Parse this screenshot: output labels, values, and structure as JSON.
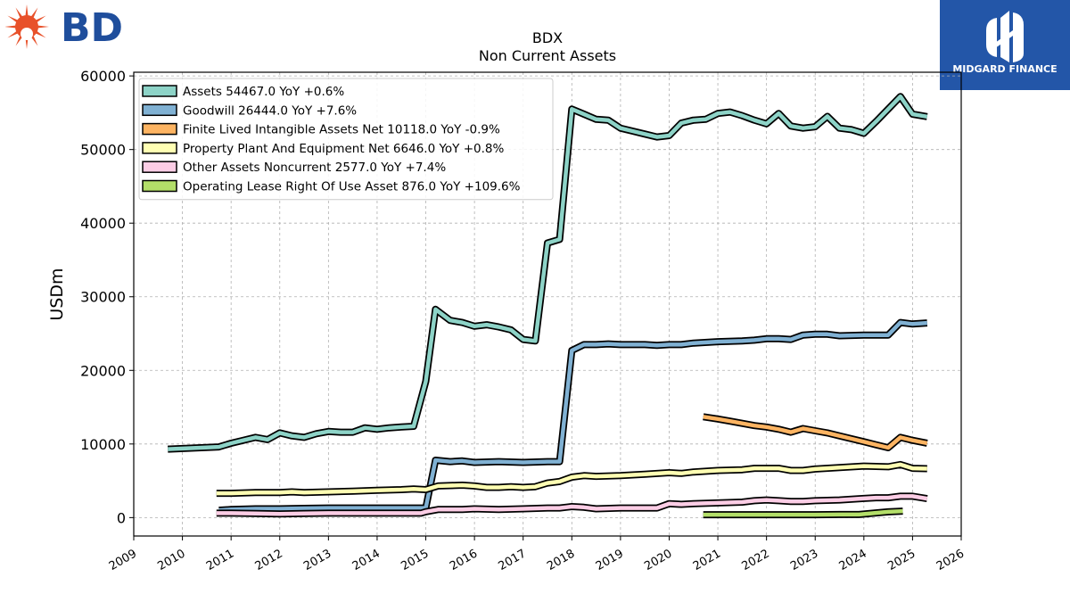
{
  "logos": {
    "left_text": "BD",
    "left_color": "#1f4e9c",
    "left_icon_color": "#e8512a",
    "right_text": "MIDGARD FINANCE",
    "right_bg": "#2356a8"
  },
  "chart_data": {
    "type": "line",
    "title": "BDX",
    "subtitle": "Non Current  Assets",
    "ylabel": "USDm",
    "xlabel": "",
    "xlim": [
      2009,
      2026
    ],
    "ylim": [
      -2500,
      60500
    ],
    "yticks": [
      0,
      10000,
      20000,
      30000,
      40000,
      50000,
      60000
    ],
    "xticks": [
      2009,
      2010,
      2011,
      2012,
      2013,
      2014,
      2015,
      2016,
      2017,
      2018,
      2019,
      2020,
      2021,
      2022,
      2023,
      2024,
      2025,
      2026
    ],
    "grid": true,
    "legend_position": "top-left",
    "series": [
      {
        "name": "Assets  54467.0 YoY +0.6%",
        "color": "#8dd3c7",
        "x": [
          2009.7,
          2010.75,
          2011.0,
          2011.25,
          2011.5,
          2011.75,
          2012.0,
          2012.25,
          2012.5,
          2012.75,
          2013.0,
          2013.25,
          2013.5,
          2013.75,
          2014.0,
          2014.25,
          2014.5,
          2014.75,
          2015.0,
          2015.2,
          2015.5,
          2015.75,
          2016.0,
          2016.25,
          2016.5,
          2016.75,
          2017.0,
          2017.25,
          2017.5,
          2017.75,
          2018.0,
          2018.25,
          2018.5,
          2018.75,
          2019.0,
          2019.25,
          2019.5,
          2019.75,
          2020.0,
          2020.25,
          2020.5,
          2020.75,
          2021.0,
          2021.25,
          2021.5,
          2021.75,
          2022.0,
          2022.25,
          2022.5,
          2022.75,
          2023.0,
          2023.25,
          2023.5,
          2023.75,
          2024.0,
          2024.25,
          2024.5,
          2024.75,
          2025.0,
          2025.3
        ],
        "values": [
          9300,
          9600,
          10100,
          10500,
          10900,
          10600,
          11500,
          11100,
          10900,
          11400,
          11700,
          11600,
          11600,
          12200,
          12000,
          12200,
          12300,
          12400,
          18500,
          28300,
          26800,
          26500,
          26000,
          26200,
          25900,
          25500,
          24200,
          24000,
          37300,
          37800,
          55500,
          54800,
          54100,
          54000,
          52900,
          52500,
          52100,
          51700,
          51900,
          53600,
          54000,
          54100,
          54900,
          55100,
          54600,
          54000,
          53500,
          54900,
          53200,
          52900,
          53100,
          54500,
          52900,
          52700,
          52200,
          53800,
          55500,
          57200,
          54800,
          54467
        ]
      },
      {
        "name": "Goodwill  26444.0 YoY +7.6%",
        "color": "#80b1d3",
        "x": [
          2010.75,
          2011.0,
          2011.5,
          2012.0,
          2012.5,
          2013.0,
          2013.5,
          2014.0,
          2014.5,
          2014.9,
          2015.0,
          2015.2,
          2015.5,
          2015.75,
          2016.0,
          2016.5,
          2017.0,
          2017.5,
          2017.75,
          2018.0,
          2018.25,
          2018.5,
          2018.75,
          2019.0,
          2019.5,
          2019.75,
          2020.0,
          2020.25,
          2020.5,
          2021.0,
          2021.5,
          2021.75,
          2022.0,
          2022.25,
          2022.5,
          2022.75,
          2023.0,
          2023.25,
          2023.5,
          2024.0,
          2024.5,
          2024.75,
          2025.0,
          2025.3
        ],
        "values": [
          1000,
          1100,
          1200,
          1200,
          1250,
          1300,
          1300,
          1300,
          1300,
          1300,
          1300,
          7800,
          7600,
          7700,
          7500,
          7600,
          7500,
          7600,
          7600,
          22700,
          23500,
          23500,
          23600,
          23500,
          23500,
          23400,
          23500,
          23500,
          23700,
          23900,
          24000,
          24100,
          24300,
          24300,
          24200,
          24800,
          24900,
          24900,
          24700,
          24800,
          24800,
          26500,
          26300,
          26444
        ]
      },
      {
        "name": "Finite Lived Intangible Assets Net  10118.0 YoY -0.9%",
        "color": "#fdb462",
        "x": [
          2020.7,
          2021.0,
          2021.25,
          2021.5,
          2021.75,
          2022.0,
          2022.25,
          2022.5,
          2022.75,
          2023.0,
          2023.25,
          2023.5,
          2023.75,
          2024.0,
          2024.25,
          2024.5,
          2024.75,
          2025.0,
          2025.3
        ],
        "values": [
          13700,
          13400,
          13100,
          12800,
          12500,
          12300,
          12000,
          11600,
          12100,
          11800,
          11500,
          11100,
          10700,
          10300,
          9900,
          9500,
          10900,
          10500,
          10118
        ]
      },
      {
        "name": "Property Plant And Equipment Net  6646.0 YoY +0.8%",
        "color": "#ffffb3",
        "x": [
          2010.7,
          2011.0,
          2011.5,
          2012.0,
          2012.25,
          2012.5,
          2013.0,
          2013.5,
          2014.0,
          2014.5,
          2014.75,
          2015.0,
          2015.25,
          2015.75,
          2016.0,
          2016.25,
          2016.5,
          2016.75,
          2017.0,
          2017.25,
          2017.5,
          2017.75,
          2018.0,
          2018.25,
          2018.5,
          2019.0,
          2019.5,
          2020.0,
          2020.25,
          2020.5,
          2021.0,
          2021.5,
          2021.75,
          2022.0,
          2022.25,
          2022.5,
          2022.75,
          2023.0,
          2023.5,
          2024.0,
          2024.5,
          2024.75,
          2025.0,
          2025.3
        ],
        "values": [
          3300,
          3300,
          3400,
          3400,
          3500,
          3400,
          3500,
          3600,
          3700,
          3800,
          3900,
          3800,
          4300,
          4400,
          4300,
          4100,
          4100,
          4200,
          4100,
          4200,
          4700,
          4900,
          5500,
          5700,
          5600,
          5700,
          5900,
          6100,
          6000,
          6200,
          6400,
          6500,
          6700,
          6700,
          6700,
          6400,
          6400,
          6600,
          6800,
          7000,
          6900,
          7200,
          6700,
          6646
        ]
      },
      {
        "name": "Other Assets Noncurrent  2577.0 YoY +7.4%",
        "color": "#fccde5",
        "x": [
          2010.7,
          2011.0,
          2011.5,
          2012.0,
          2012.5,
          2013.0,
          2013.5,
          2014.0,
          2014.5,
          2014.9,
          2015.0,
          2015.25,
          2015.75,
          2016.0,
          2016.5,
          2017.0,
          2017.5,
          2017.75,
          2018.0,
          2018.25,
          2018.5,
          2019.0,
          2019.5,
          2019.75,
          2020.0,
          2020.25,
          2020.5,
          2021.0,
          2021.5,
          2021.75,
          2022.0,
          2022.25,
          2022.5,
          2022.75,
          2023.0,
          2023.5,
          2024.0,
          2024.25,
          2024.5,
          2024.75,
          2025.0,
          2025.3
        ],
        "values": [
          600,
          600,
          550,
          500,
          550,
          600,
          600,
          600,
          600,
          600,
          800,
          1100,
          1100,
          1200,
          1100,
          1200,
          1300,
          1300,
          1500,
          1400,
          1200,
          1300,
          1300,
          1300,
          1900,
          1800,
          1900,
          2000,
          2100,
          2300,
          2400,
          2300,
          2200,
          2200,
          2300,
          2400,
          2600,
          2700,
          2700,
          2900,
          2900,
          2577
        ]
      },
      {
        "name": "Operating Lease Right Of Use Asset  876.0 YoY +109.6%",
        "color": "#b3de69",
        "x": [
          2020.7,
          2021.0,
          2021.5,
          2022.0,
          2022.5,
          2023.0,
          2023.5,
          2023.9,
          2024.2,
          2024.5,
          2024.8
        ],
        "values": [
          400,
          400,
          400,
          400,
          400,
          400,
          420,
          420,
          600,
          780,
          876
        ]
      }
    ]
  }
}
